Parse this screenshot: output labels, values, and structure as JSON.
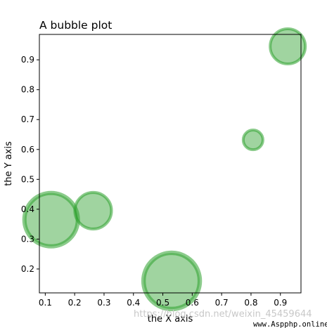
{
  "chart_data": {
    "type": "scatter",
    "title": "A bubble plot",
    "xlabel": "the X axis",
    "ylabel": "the Y axis",
    "xlim": [
      0.08,
      0.97
    ],
    "ylim": [
      0.12,
      0.985
    ],
    "xticks": [
      "0.1",
      "0.2",
      "0.3",
      "0.4",
      "0.5",
      "0.6",
      "0.7",
      "0.8",
      "0.9"
    ],
    "yticks": [
      "0.2",
      "0.3",
      "0.4",
      "0.5",
      "0.6",
      "0.7",
      "0.8",
      "0.9"
    ],
    "grid": false,
    "color": "#2ca02c",
    "points": [
      {
        "x": 0.12,
        "y": 0.365,
        "size": 38
      },
      {
        "x": 0.263,
        "y": 0.395,
        "size": 26
      },
      {
        "x": 0.53,
        "y": 0.16,
        "size": 40
      },
      {
        "x": 0.807,
        "y": 0.632,
        "size": 14
      },
      {
        "x": 0.925,
        "y": 0.945,
        "size": 25
      }
    ]
  },
  "watermark": "https://blog.csdn.net/weixin_45459644",
  "credit": "www.Aspphp.online"
}
